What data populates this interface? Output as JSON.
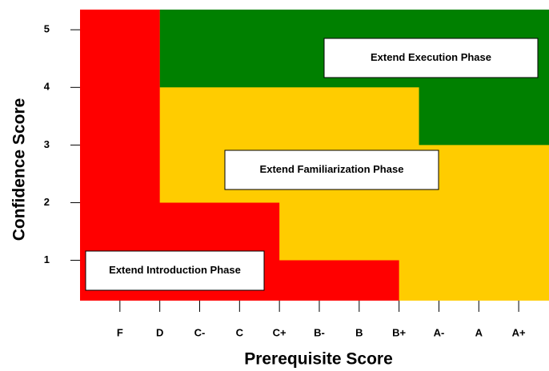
{
  "chart_data": {
    "type": "region",
    "x_label": "Prerequisite Score",
    "y_label": "Confidence Score",
    "categories": [
      "F",
      "D",
      "C-",
      "C",
      "C+",
      "B-",
      "B",
      "B+",
      "A-",
      "A",
      "A+"
    ],
    "xlim": [
      -1,
      10.76
    ],
    "ylim": [
      0.3,
      5.35
    ],
    "yticks": [
      1,
      2,
      3,
      4,
      5
    ],
    "regions": [
      {
        "name": "Extend Familiarization Phase",
        "color": "#ffcc00",
        "x": [
          -1,
          10.76,
          10.76,
          -1
        ],
        "y": [
          0.3,
          0.3,
          5.35,
          5.35
        ]
      },
      {
        "name": "Extend Execution Phase",
        "color": "#008000",
        "x": [
          1,
          10.76,
          10.76,
          7.5,
          7.5,
          1
        ],
        "y": [
          5.35,
          5.35,
          3,
          3,
          4,
          4
        ]
      },
      {
        "name": "Extend Introduction Phase",
        "color": "#ff0000",
        "x": [
          -1,
          -1,
          1,
          1,
          4,
          4,
          7,
          7
        ],
        "y": [
          0.3,
          5.35,
          5.35,
          2,
          2,
          1,
          1,
          0.3
        ]
      }
    ]
  }
}
